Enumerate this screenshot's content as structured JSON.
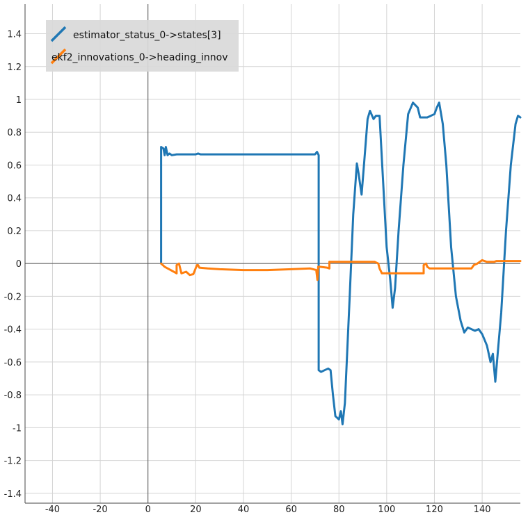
{
  "chart_data": {
    "type": "line",
    "xlim": [
      -51.5,
      156
    ],
    "ylim": [
      -1.46,
      1.58
    ],
    "x_ticks": [
      "-40",
      "-20",
      "0",
      "20",
      "40",
      "60",
      "80",
      "100",
      "120",
      "140"
    ],
    "y_ticks": [
      "1.4",
      "1.2",
      "1",
      "0.8",
      "0.6",
      "0.4",
      "0.2",
      "0",
      "-0.2",
      "-0.4",
      "-0.6",
      "-0.8",
      "-1",
      "-1.2",
      "-1.4"
    ],
    "grid": true,
    "legend_position": "top-left",
    "series": [
      {
        "name": "estimator_status_0->states[3]",
        "color": "#1f77b4",
        "points": [
          [
            5.5,
            0
          ],
          [
            5.5,
            0.71
          ],
          [
            6.5,
            0.7
          ],
          [
            7.0,
            0.66
          ],
          [
            7.5,
            0.71
          ],
          [
            8.2,
            0.66
          ],
          [
            9.0,
            0.67
          ],
          [
            10.0,
            0.66
          ],
          [
            12.0,
            0.665
          ],
          [
            20.0,
            0.665
          ],
          [
            21.0,
            0.67
          ],
          [
            22.0,
            0.665
          ],
          [
            40.0,
            0.665
          ],
          [
            60.0,
            0.665
          ],
          [
            70.0,
            0.665
          ],
          [
            70.8,
            0.68
          ],
          [
            71.5,
            0.66
          ],
          [
            71.5,
            -0.65
          ],
          [
            72.5,
            -0.66
          ],
          [
            74.0,
            -0.65
          ],
          [
            75.5,
            -0.64
          ],
          [
            76.5,
            -0.65
          ],
          [
            77.5,
            -0.8
          ],
          [
            78.5,
            -0.93
          ],
          [
            80.0,
            -0.95
          ],
          [
            80.8,
            -0.9
          ],
          [
            81.5,
            -0.98
          ],
          [
            82.5,
            -0.85
          ],
          [
            84.5,
            -0.2
          ],
          [
            86.0,
            0.3
          ],
          [
            87.5,
            0.61
          ],
          [
            88.2,
            0.55
          ],
          [
            89.5,
            0.42
          ],
          [
            90.5,
            0.6
          ],
          [
            92.0,
            0.88
          ],
          [
            93.0,
            0.93
          ],
          [
            94.5,
            0.88
          ],
          [
            95.5,
            0.9
          ],
          [
            97.0,
            0.9
          ],
          [
            98.5,
            0.5
          ],
          [
            100.0,
            0.1
          ],
          [
            101.5,
            -0.1
          ],
          [
            102.5,
            -0.27
          ],
          [
            103.5,
            -0.15
          ],
          [
            105.0,
            0.2
          ],
          [
            107.0,
            0.6
          ],
          [
            109.0,
            0.91
          ],
          [
            111.0,
            0.98
          ],
          [
            113.0,
            0.95
          ],
          [
            114.0,
            0.89
          ],
          [
            117.0,
            0.89
          ],
          [
            120.0,
            0.91
          ],
          [
            121.0,
            0.95
          ],
          [
            122.0,
            0.98
          ],
          [
            123.5,
            0.85
          ],
          [
            125.0,
            0.6
          ],
          [
            127.0,
            0.1
          ],
          [
            129.0,
            -0.2
          ],
          [
            131.0,
            -0.35
          ],
          [
            132.5,
            -0.42
          ],
          [
            134.0,
            -0.39
          ],
          [
            137.0,
            -0.41
          ],
          [
            138.5,
            -0.4
          ],
          [
            140.0,
            -0.43
          ],
          [
            142.0,
            -0.5
          ],
          [
            143.5,
            -0.6
          ],
          [
            144.5,
            -0.55
          ],
          [
            145.5,
            -0.72
          ],
          [
            146.5,
            -0.55
          ],
          [
            148.0,
            -0.3
          ],
          [
            150.0,
            0.2
          ],
          [
            152.0,
            0.6
          ],
          [
            154.0,
            0.85
          ],
          [
            155.0,
            0.9
          ],
          [
            156.0,
            0.89
          ]
        ]
      },
      {
        "name": "ekf2_innovations_0->heading_innov",
        "color": "#ff7f0e",
        "points": [
          [
            5.5,
            0
          ],
          [
            7.0,
            -0.02
          ],
          [
            9.5,
            -0.04
          ],
          [
            12.0,
            -0.06
          ],
          [
            12.0,
            -0.01
          ],
          [
            13.0,
            0.0
          ],
          [
            14.0,
            -0.06
          ],
          [
            16.0,
            -0.05
          ],
          [
            17.5,
            -0.07
          ],
          [
            19.0,
            -0.065
          ],
          [
            20.5,
            -0.01
          ],
          [
            21.0,
            -0.01
          ],
          [
            21.5,
            -0.025
          ],
          [
            25.0,
            -0.03
          ],
          [
            30.0,
            -0.035
          ],
          [
            40.0,
            -0.04
          ],
          [
            50.0,
            -0.04
          ],
          [
            60.0,
            -0.035
          ],
          [
            68.0,
            -0.03
          ],
          [
            70.5,
            -0.04
          ],
          [
            71.0,
            -0.1
          ],
          [
            71.3,
            -0.02
          ],
          [
            72.0,
            -0.02
          ],
          [
            75.0,
            -0.025
          ],
          [
            76.0,
            -0.03
          ],
          [
            76.0,
            0.01
          ],
          [
            76.5,
            0.01
          ],
          [
            95.0,
            0.01
          ],
          [
            96.5,
            0.0
          ],
          [
            97.0,
            -0.03
          ],
          [
            98.0,
            -0.06
          ],
          [
            105.0,
            -0.06
          ],
          [
            115.5,
            -0.06
          ],
          [
            115.5,
            -0.01
          ],
          [
            116.5,
            0.0
          ],
          [
            117.0,
            -0.02
          ],
          [
            118.0,
            -0.03
          ],
          [
            130.0,
            -0.03
          ],
          [
            135.5,
            -0.03
          ],
          [
            136.5,
            -0.01
          ],
          [
            138.0,
            0.0
          ],
          [
            140.0,
            0.02
          ],
          [
            142.0,
            0.01
          ],
          [
            145.0,
            0.01
          ],
          [
            146.0,
            0.015
          ],
          [
            150.0,
            0.015
          ],
          [
            156.0,
            0.015
          ]
        ]
      }
    ]
  }
}
